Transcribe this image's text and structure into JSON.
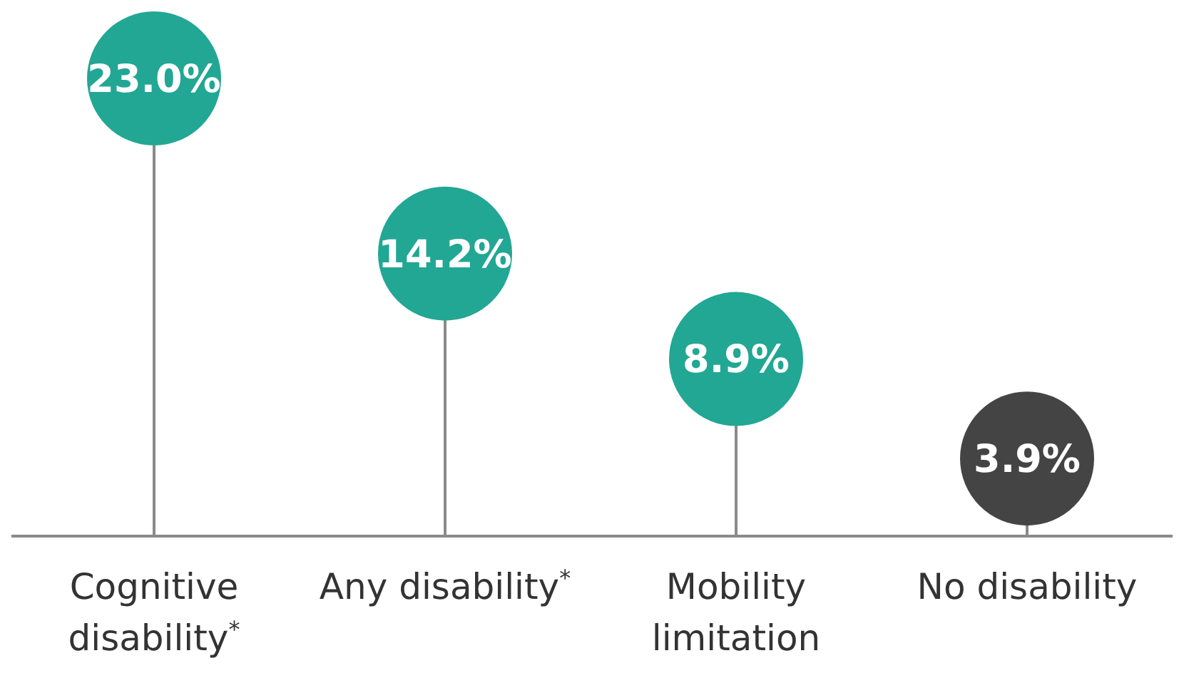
{
  "chart_data": {
    "type": "lollipop",
    "categories": [
      "Cognitive disability$^{*}$",
      "Any disability$^{*}$",
      "Mobility limitation",
      "No disability"
    ],
    "values": [
      23.0,
      14.2,
      8.9,
      3.9
    ],
    "colors": [
      "#22a794",
      "#22a794",
      "#22a794",
      "#444444"
    ],
    "value_labels": [
      "23.0%",
      "14.2%",
      "8.9%",
      "3.9%"
    ]
  }
}
